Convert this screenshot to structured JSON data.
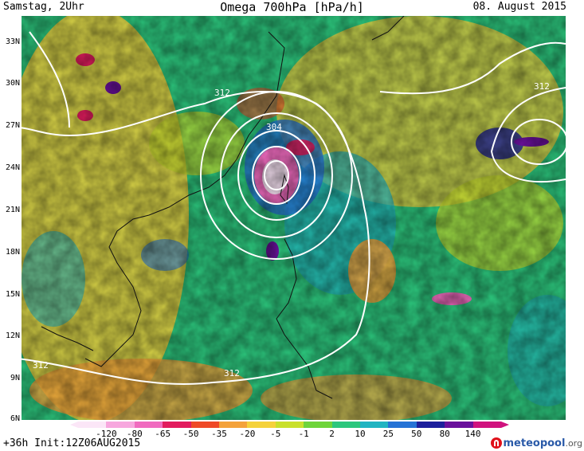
{
  "header": {
    "left": "Samstag, 2Uhr",
    "center": "Omega 700hPa [hPa/h]",
    "right": "08. August 2015"
  },
  "footer": {
    "left": "+36h Init:12Z06AUG2015",
    "logo": "meteopool",
    "logo_tld": ".org"
  },
  "map": {
    "lat_labels": [
      "33N",
      "30N",
      "27N",
      "24N",
      "21N",
      "18N",
      "15N",
      "12N",
      "9N",
      "6N"
    ],
    "contour_labels": [
      "312",
      "304",
      "312",
      "312",
      "312"
    ],
    "background_color": "#2cc77d"
  },
  "colorbar": {
    "labels": [
      "-120",
      "-80",
      "-65",
      "-50",
      "-35",
      "-20",
      "-5",
      "-1",
      "2",
      "10",
      "25",
      "50",
      "80",
      "140"
    ],
    "colors": [
      "#fbe6f7",
      "#f7a7de",
      "#f06bbf",
      "#e21c5e",
      "#ef4a28",
      "#f4a23a",
      "#f5d23c",
      "#c9e02c",
      "#6ed43a",
      "#2cc77d",
      "#21b4c2",
      "#2573d6",
      "#1d1f9c",
      "#6a109c",
      "#d0127e"
    ]
  }
}
